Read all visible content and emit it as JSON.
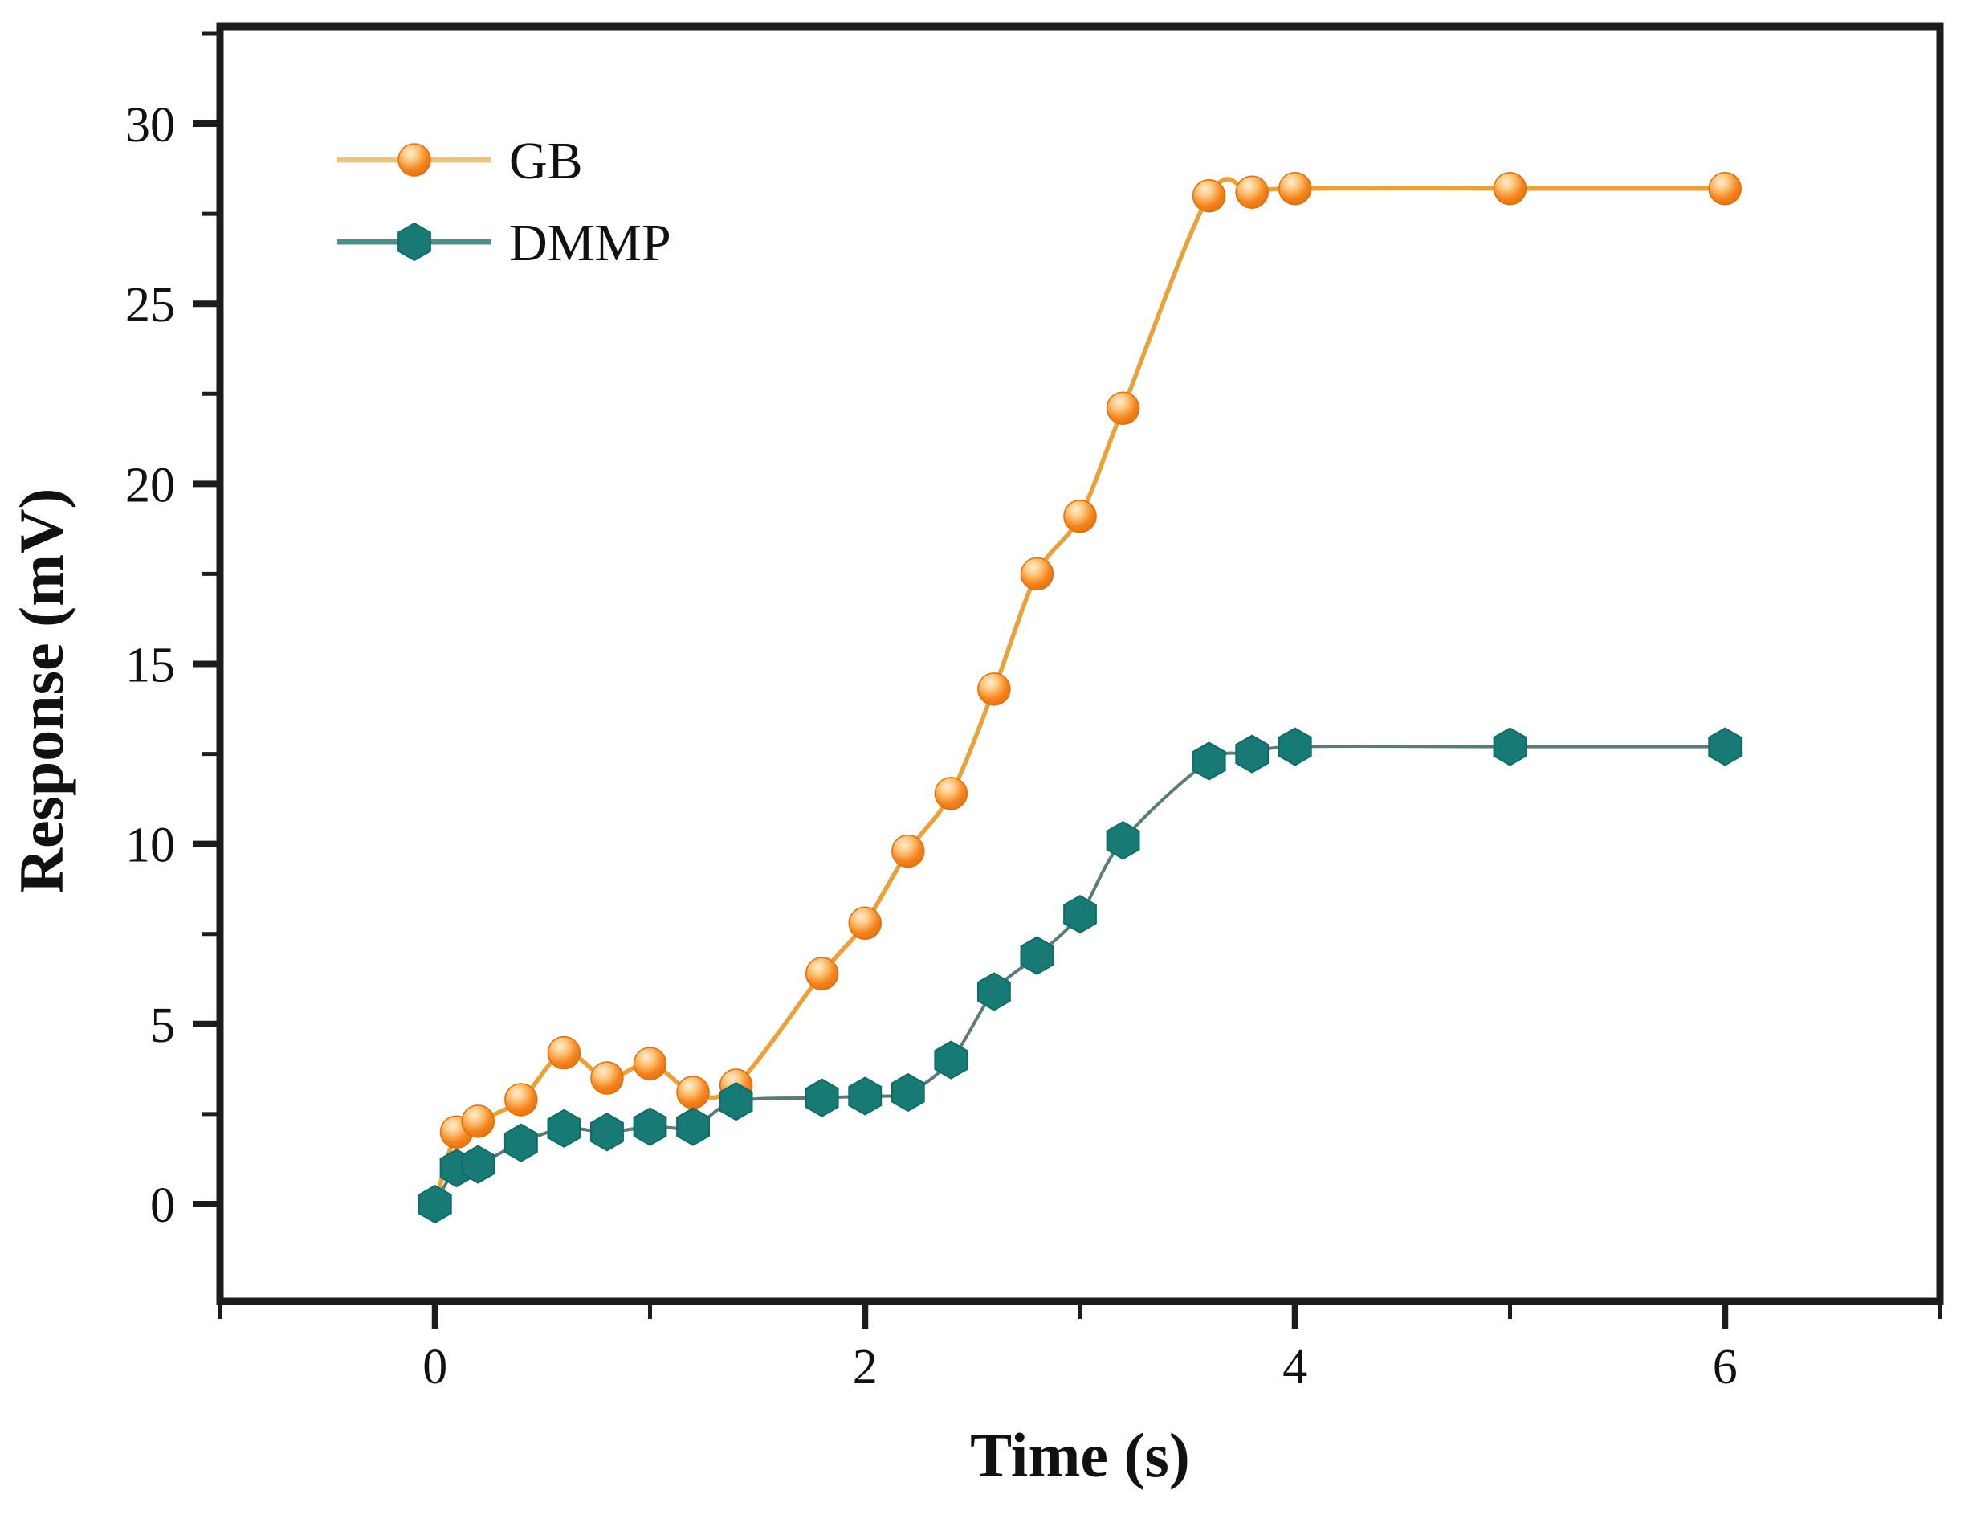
{
  "chart_data": {
    "type": "line",
    "title": "",
    "xlabel": "Time (s)",
    "ylabel": "Response (mV)",
    "xlim": [
      -1,
      7
    ],
    "ylim": [
      -2.7,
      32.7
    ],
    "x_major_ticks": [
      0,
      2,
      4,
      6
    ],
    "x_minor_ticks": [
      -1,
      1,
      3,
      5,
      7
    ],
    "y_major_ticks": [
      0,
      5,
      10,
      15,
      20,
      25,
      30
    ],
    "y_minor_ticks": [
      2.5,
      7.5,
      12.5,
      17.5,
      22.5,
      27.5,
      32.5
    ],
    "grid": false,
    "frame_color": "#1c1c1c",
    "text_color": "#111111",
    "background": "#ffffff",
    "legend": {
      "position": "top-left-inside",
      "entries": [
        "GB",
        "DMMP"
      ]
    },
    "series": [
      {
        "name": "GB",
        "marker": "sphere-circle",
        "marker_color": "#f5831c",
        "marker_highlight": "#ffeed4",
        "marker_mid": "#fdc77d",
        "marker_edge": "#dd6f0e",
        "line_color": "#e9a23b",
        "legend_line_color": "#eec27f",
        "x": [
          0,
          0.1,
          0.2,
          0.4,
          0.6,
          0.8,
          1.0,
          1.2,
          1.4,
          1.8,
          2.0,
          2.2,
          2.4,
          2.6,
          2.8,
          3.0,
          3.2,
          3.6,
          3.8,
          4.0,
          5.0,
          6.0
        ],
        "y": [
          0,
          2.0,
          2.3,
          2.9,
          4.2,
          3.5,
          3.9,
          3.1,
          3.3,
          6.4,
          7.8,
          9.8,
          11.4,
          14.3,
          17.5,
          19.1,
          22.1,
          28.0,
          28.1,
          28.2,
          28.2,
          28.2
        ]
      },
      {
        "name": "DMMP",
        "marker": "hexagon",
        "marker_color": "#177a74",
        "marker_edge": "#116b66",
        "line_color": "#5b7a78",
        "legend_line_color": "#4e8f8a",
        "x": [
          0,
          0.1,
          0.2,
          0.4,
          0.6,
          0.8,
          1.0,
          1.2,
          1.4,
          1.8,
          2.0,
          2.2,
          2.4,
          2.6,
          2.8,
          3.0,
          3.2,
          3.6,
          3.8,
          4.0,
          5.0,
          6.0
        ],
        "y": [
          0,
          1.0,
          1.1,
          1.7,
          2.1,
          2.0,
          2.15,
          2.15,
          2.85,
          2.95,
          3.0,
          3.1,
          4.0,
          5.9,
          6.9,
          8.05,
          10.1,
          12.3,
          12.5,
          12.7,
          12.7,
          12.7
        ]
      }
    ]
  }
}
